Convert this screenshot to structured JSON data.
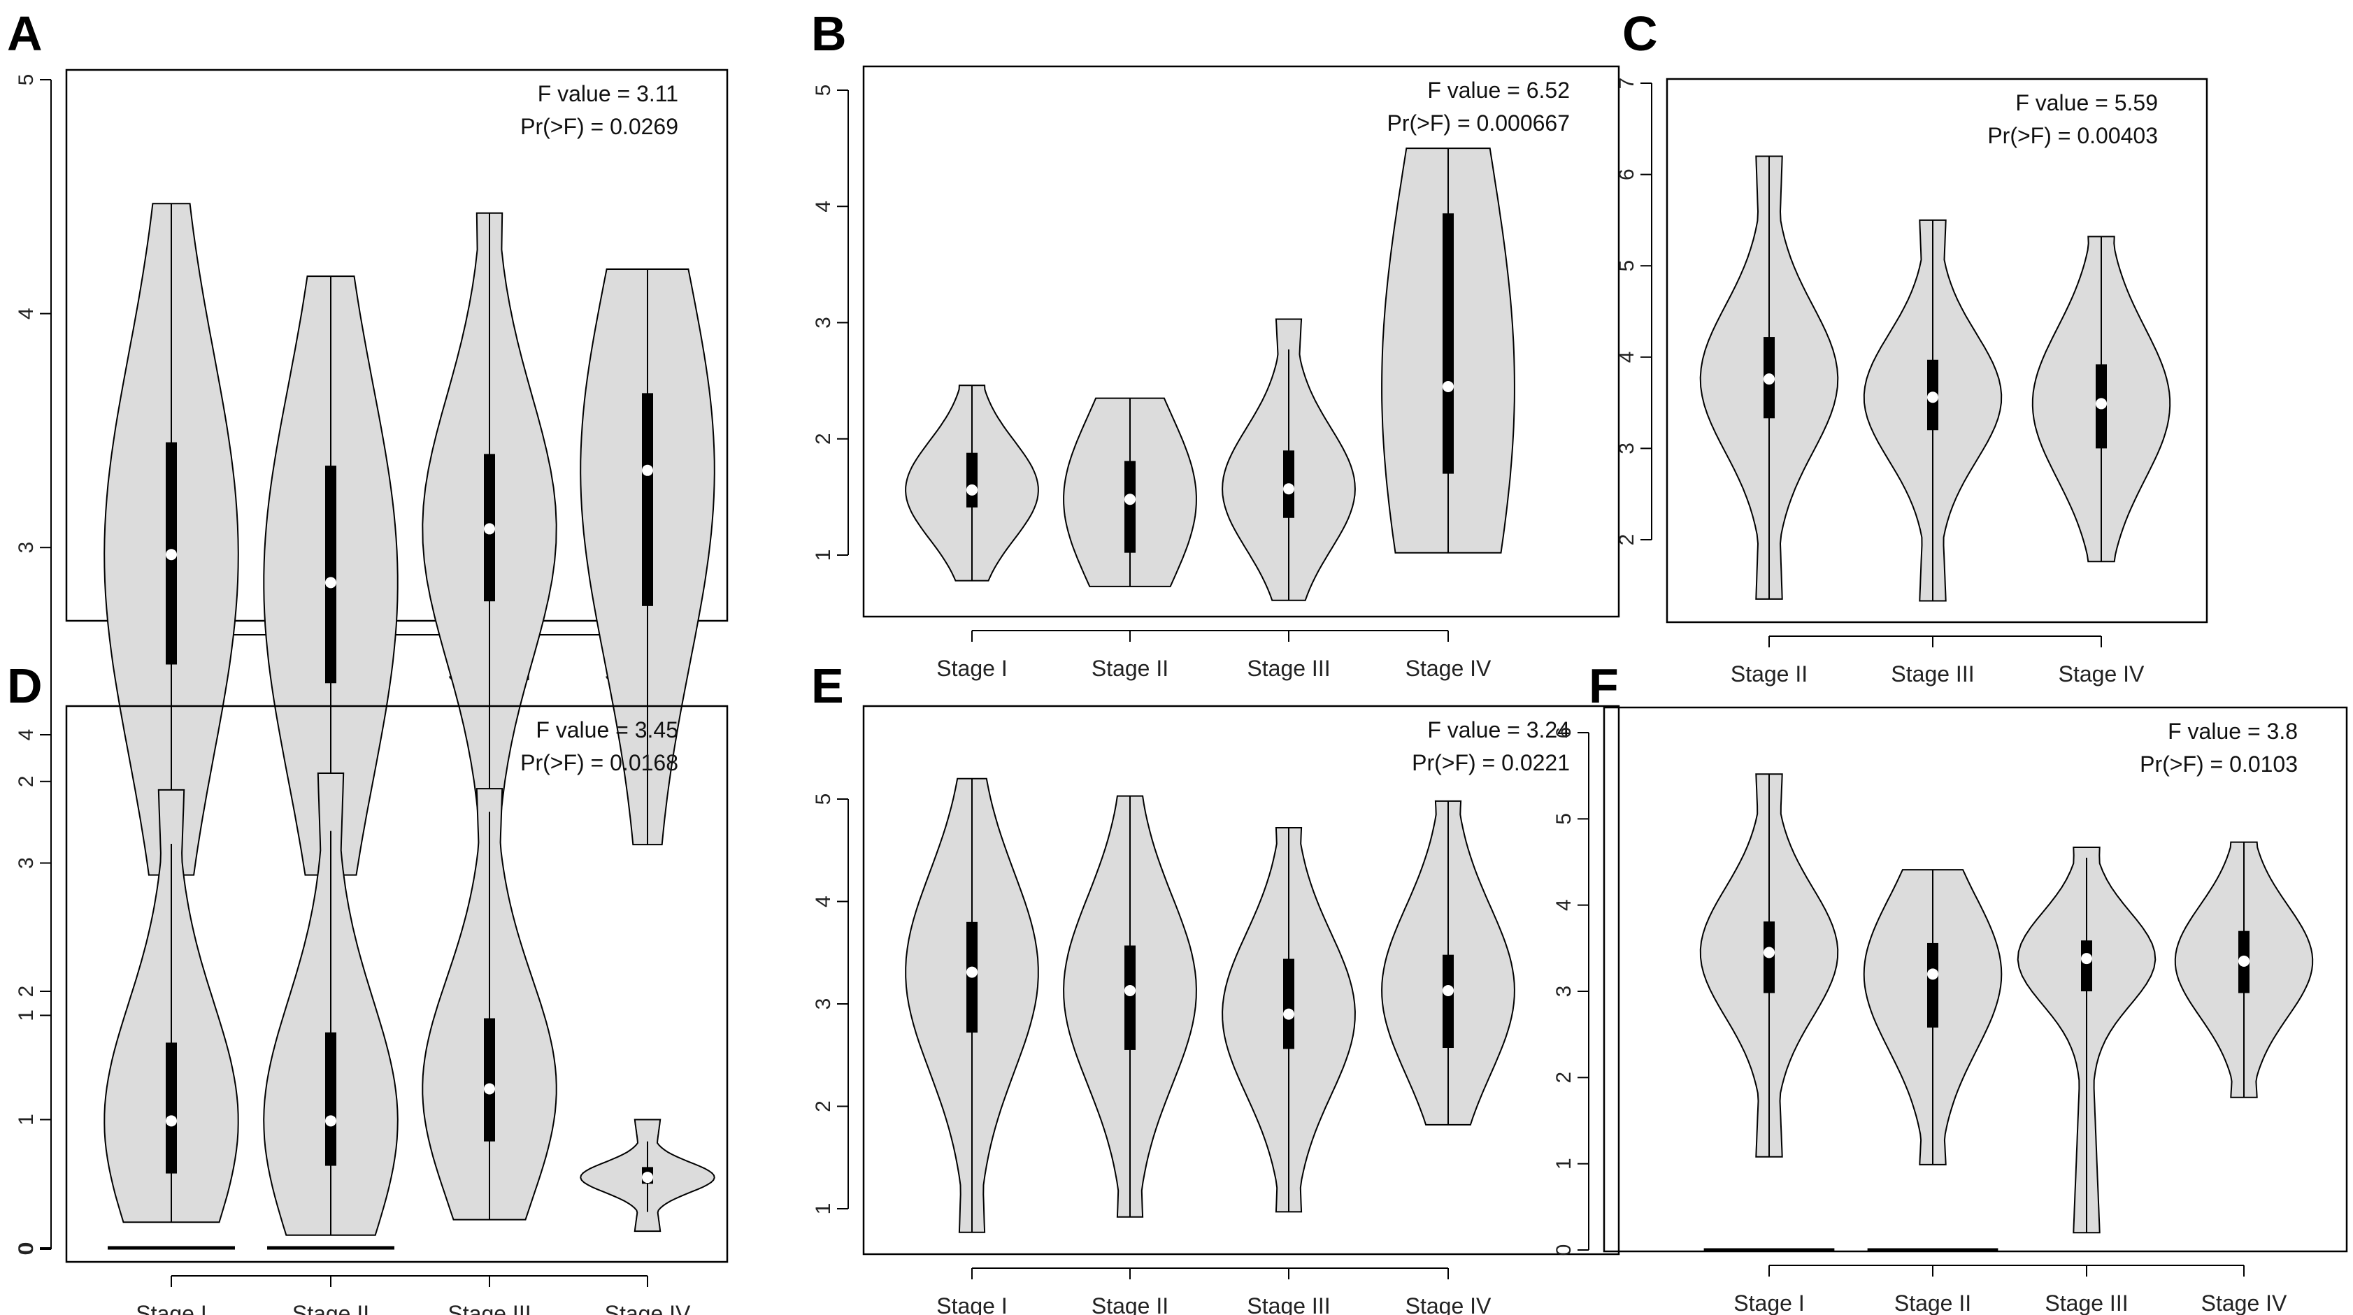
{
  "figure": {
    "panels": [
      "A",
      "B",
      "C",
      "D",
      "E",
      "F"
    ]
  },
  "chart_data": [
    {
      "type": "violin",
      "panel": "A",
      "categories": [
        "Stage I",
        "Stage II",
        "Stage III",
        "Stage IV"
      ],
      "ylim": [
        0,
        5
      ],
      "yticks": [
        "0",
        "1",
        "2",
        "3",
        "4",
        "5"
      ],
      "annotation": [
        "F value = 3.11",
        "Pr(>F) = 0.0269"
      ],
      "series": [
        {
          "name": "Stage I",
          "min": 1.6,
          "max": 4.47,
          "q1": 2.5,
          "median": 2.97,
          "q3": 3.45,
          "whisker": [
            1.6,
            4.47
          ]
        },
        {
          "name": "Stage II",
          "min": 1.6,
          "max": 4.16,
          "q1": 2.42,
          "median": 2.85,
          "q3": 3.35,
          "whisker": [
            1.6,
            4.16
          ]
        },
        {
          "name": "Stage III",
          "min": 0.67,
          "max": 4.43,
          "q1": 2.77,
          "median": 3.08,
          "q3": 3.4,
          "whisker": [
            0.67,
            4.43
          ]
        },
        {
          "name": "Stage IV",
          "min": 1.73,
          "max": 4.19,
          "q1": 2.75,
          "median": 3.33,
          "q3": 3.66,
          "whisker": [
            1.73,
            4.19
          ]
        }
      ]
    },
    {
      "type": "violin",
      "panel": "B",
      "categories": [
        "Stage I",
        "Stage II",
        "Stage III",
        "Stage IV"
      ],
      "ylim": [
        0.5,
        5
      ],
      "yticks": [
        "1",
        "2",
        "3",
        "4",
        "5"
      ],
      "annotation": [
        "F value = 6.52",
        "Pr(>F) = 0.000667"
      ],
      "series": [
        {
          "name": "Stage I",
          "min": 0.78,
          "max": 2.46,
          "q1": 1.41,
          "median": 1.56,
          "q3": 1.88,
          "whisker": [
            0.78,
            2.46
          ]
        },
        {
          "name": "Stage II",
          "min": 0.73,
          "max": 2.35,
          "q1": 1.02,
          "median": 1.48,
          "q3": 1.81,
          "whisker": [
            0.73,
            2.35
          ]
        },
        {
          "name": "Stage III",
          "min": 0.61,
          "max": 3.03,
          "q1": 1.32,
          "median": 1.57,
          "q3": 1.9,
          "whisker": [
            0.61,
            2.77
          ]
        },
        {
          "name": "Stage IV",
          "min": 1.02,
          "max": 4.5,
          "q1": 1.7,
          "median": 2.45,
          "q3": 3.94,
          "whisker": [
            1.02,
            4.5
          ]
        }
      ]
    },
    {
      "type": "violin",
      "panel": "C",
      "categories": [
        "Stage II",
        "Stage III",
        "Stage IV"
      ],
      "ylim": [
        1,
        7
      ],
      "yticks": [
        "2",
        "3",
        "4",
        "5",
        "6",
        "7"
      ],
      "annotation": [
        "F value = 5.59",
        "Pr(>F) = 0.00403"
      ],
      "series": [
        {
          "name": "Stage II",
          "min": 1.35,
          "max": 6.2,
          "q1": 3.33,
          "median": 3.76,
          "q3": 4.22,
          "whisker": [
            1.35,
            6.2
          ]
        },
        {
          "name": "Stage III",
          "min": 1.33,
          "max": 5.5,
          "q1": 3.2,
          "median": 3.56,
          "q3": 3.97,
          "whisker": [
            1.33,
            5.5
          ]
        },
        {
          "name": "Stage IV",
          "min": 1.76,
          "max": 5.32,
          "q1": 3.0,
          "median": 3.49,
          "q3": 3.92,
          "whisker": [
            1.76,
            5.32
          ]
        }
      ]
    },
    {
      "type": "violin",
      "panel": "D",
      "categories": [
        "Stage I",
        "Stage II",
        "Stage III",
        "Stage IV"
      ],
      "ylim": [
        0,
        4
      ],
      "yticks": [
        "0",
        "1",
        "2",
        "3",
        "4"
      ],
      "annotation": [
        "F value = 3.45",
        "Pr(>F) = 0.0168"
      ],
      "series": [
        {
          "name": "Stage I",
          "min": 0.2,
          "max": 3.57,
          "q1": 0.58,
          "median": 0.99,
          "q3": 1.6,
          "whisker": [
            0.2,
            3.15
          ],
          "zero_cluster": true
        },
        {
          "name": "Stage II",
          "min": 0.1,
          "max": 3.7,
          "q1": 0.64,
          "median": 0.99,
          "q3": 1.68,
          "whisker": [
            0.1,
            3.25
          ],
          "zero_cluster": true
        },
        {
          "name": "Stage III",
          "min": 0.22,
          "max": 3.58,
          "q1": 0.83,
          "median": 1.24,
          "q3": 1.79,
          "whisker": [
            0.22,
            3.4
          ]
        },
        {
          "name": "Stage IV",
          "min": 0.13,
          "max": 1.0,
          "q1": 0.5,
          "median": 0.55,
          "q3": 0.63,
          "whisker": [
            0.28,
            0.83
          ]
        }
      ]
    },
    {
      "type": "violin",
      "panel": "E",
      "categories": [
        "Stage I",
        "Stage II",
        "Stage III",
        "Stage IV"
      ],
      "ylim": [
        0.5,
        5.5
      ],
      "yticks": [
        "1",
        "2",
        "3",
        "4",
        "5"
      ],
      "annotation": [
        "F value = 3.24",
        "Pr(>F) = 0.0221"
      ],
      "series": [
        {
          "name": "Stage I",
          "min": 0.77,
          "max": 5.2,
          "q1": 2.72,
          "median": 3.31,
          "q3": 3.8,
          "whisker": [
            0.77,
            5.2
          ]
        },
        {
          "name": "Stage II",
          "min": 0.92,
          "max": 5.03,
          "q1": 2.55,
          "median": 3.13,
          "q3": 3.57,
          "whisker": [
            0.92,
            5.03
          ]
        },
        {
          "name": "Stage III",
          "min": 0.97,
          "max": 4.72,
          "q1": 2.56,
          "median": 2.9,
          "q3": 3.44,
          "whisker": [
            0.97,
            4.72
          ]
        },
        {
          "name": "Stage IV",
          "min": 1.82,
          "max": 4.98,
          "q1": 2.57,
          "median": 3.13,
          "q3": 3.48,
          "whisker": [
            1.82,
            4.98
          ]
        }
      ]
    },
    {
      "type": "violin",
      "panel": "F",
      "categories": [
        "Stage I",
        "Stage II",
        "Stage III",
        "Stage IV"
      ],
      "ylim": [
        0,
        6
      ],
      "yticks": [
        "0",
        "1",
        "2",
        "3",
        "4",
        "5",
        "6"
      ],
      "annotation": [
        "F value = 3.8",
        "Pr(>F) = 0.0103"
      ],
      "series": [
        {
          "name": "Stage I",
          "min": 1.08,
          "max": 5.52,
          "q1": 2.98,
          "median": 3.45,
          "q3": 3.81,
          "whisker": [
            1.08,
            5.52
          ],
          "zero_cluster": true
        },
        {
          "name": "Stage II",
          "min": 0.99,
          "max": 4.41,
          "q1": 2.58,
          "median": 3.2,
          "q3": 3.56,
          "whisker": [
            0.99,
            4.41
          ],
          "zero_cluster": true
        },
        {
          "name": "Stage III",
          "min": 0.2,
          "max": 4.67,
          "q1": 3.0,
          "median": 3.38,
          "q3": 3.59,
          "whisker": [
            0.2,
            4.55
          ]
        },
        {
          "name": "Stage IV",
          "min": 1.77,
          "max": 4.73,
          "q1": 2.98,
          "median": 3.35,
          "q3": 3.7,
          "whisker": [
            1.77,
            4.73
          ]
        }
      ]
    }
  ]
}
